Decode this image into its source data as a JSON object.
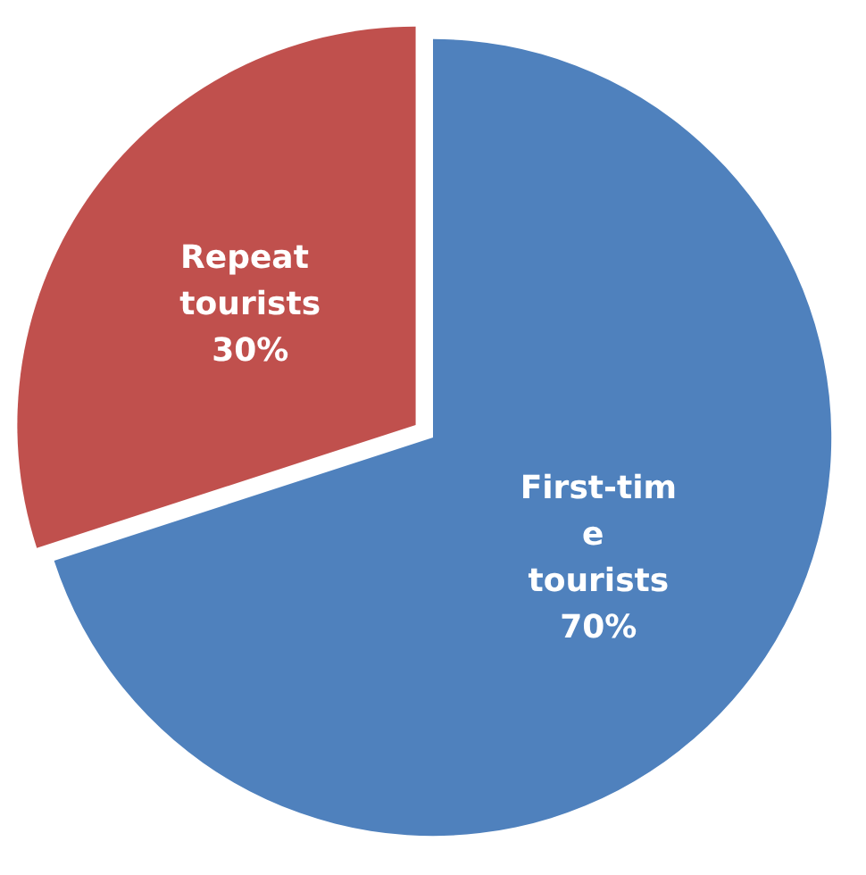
{
  "chart_data": {
    "type": "pie",
    "categories": [
      "First-time tourists",
      "Repeat tourists"
    ],
    "values": [
      70,
      30
    ],
    "colors": [
      "#4f81bd",
      "#c0504d"
    ],
    "value_labels": [
      "70%",
      "30%"
    ],
    "legend": false
  }
}
